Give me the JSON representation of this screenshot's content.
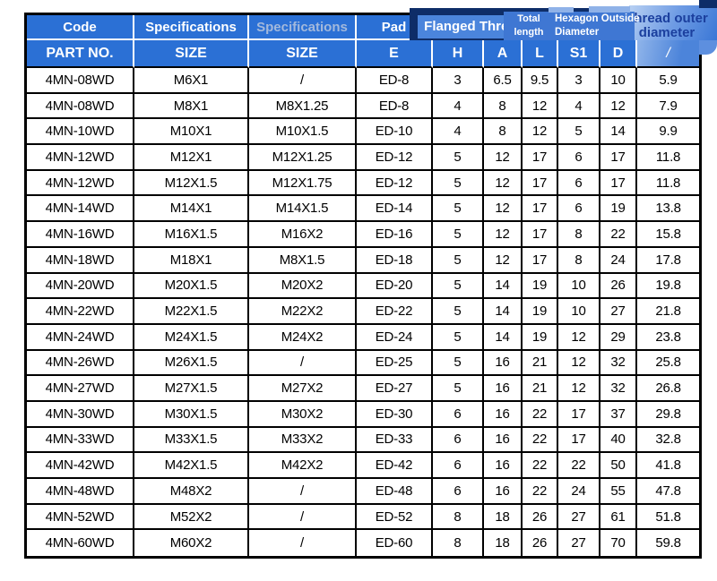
{
  "colors": {
    "header_blue": "#2b70d5",
    "navy": "#0e2d68",
    "box_blue": "#4b85dc",
    "med_blue": "#3f77d3",
    "light_blue": "#8fb2e8",
    "muted_text": "#a3b9dc",
    "thread_text": "#1b3f9e",
    "border_black": "#000000"
  },
  "header": {
    "row1": {
      "code": "Code",
      "spec1": "Specifications",
      "spec2": "Specifications",
      "pad": "Pad",
      "flanged_thread": "Flanged Thread",
      "total_length_lines": [
        "Total",
        "length"
      ],
      "hexagon_lines": [
        "Hexagon Outside",
        "Diameter"
      ],
      "thread_outer_lines": [
        "Thread outer",
        "diameter"
      ]
    },
    "row2": [
      "PART NO.",
      "SIZE",
      "SIZE",
      "E",
      "H",
      "A",
      "L",
      "S1",
      "D",
      "/"
    ]
  },
  "table": {
    "rows": [
      [
        "4MN-08WD",
        "M6X1",
        "/",
        "ED-8",
        "3",
        "6.5",
        "9.5",
        "3",
        "10",
        "5.9"
      ],
      [
        "4MN-08WD",
        "M8X1",
        "M8X1.25",
        "ED-8",
        "4",
        "8",
        "12",
        "4",
        "12",
        "7.9"
      ],
      [
        "4MN-10WD",
        "M10X1",
        "M10X1.5",
        "ED-10",
        "4",
        "8",
        "12",
        "5",
        "14",
        "9.9"
      ],
      [
        "4MN-12WD",
        "M12X1",
        "M12X1.25",
        "ED-12",
        "5",
        "12",
        "17",
        "6",
        "17",
        "11.8"
      ],
      [
        "4MN-12WD",
        "M12X1.5",
        "M12X1.75",
        "ED-12",
        "5",
        "12",
        "17",
        "6",
        "17",
        "11.8"
      ],
      [
        "4MN-14WD",
        "M14X1",
        "M14X1.5",
        "ED-14",
        "5",
        "12",
        "17",
        "6",
        "19",
        "13.8"
      ],
      [
        "4MN-16WD",
        "M16X1.5",
        "M16X2",
        "ED-16",
        "5",
        "12",
        "17",
        "8",
        "22",
        "15.8"
      ],
      [
        "4MN-18WD",
        "M18X1",
        "M8X1.5",
        "ED-18",
        "5",
        "12",
        "17",
        "8",
        "24",
        "17.8"
      ],
      [
        "4MN-20WD",
        "M20X1.5",
        "M20X2",
        "ED-20",
        "5",
        "14",
        "19",
        "10",
        "26",
        "19.8"
      ],
      [
        "4MN-22WD",
        "M22X1.5",
        "M22X2",
        "ED-22",
        "5",
        "14",
        "19",
        "10",
        "27",
        "21.8"
      ],
      [
        "4MN-24WD",
        "M24X1.5",
        "M24X2",
        "ED-24",
        "5",
        "14",
        "19",
        "12",
        "29",
        "23.8"
      ],
      [
        "4MN-26WD",
        "M26X1.5",
        "/",
        "ED-25",
        "5",
        "16",
        "21",
        "12",
        "32",
        "25.8"
      ],
      [
        "4MN-27WD",
        "M27X1.5",
        "M27X2",
        "ED-27",
        "5",
        "16",
        "21",
        "12",
        "32",
        "26.8"
      ],
      [
        "4MN-30WD",
        "M30X1.5",
        "M30X2",
        "ED-30",
        "6",
        "16",
        "22",
        "17",
        "37",
        "29.8"
      ],
      [
        "4MN-33WD",
        "M33X1.5",
        "M33X2",
        "ED-33",
        "6",
        "16",
        "22",
        "17",
        "40",
        "32.8"
      ],
      [
        "4MN-42WD",
        "M42X1.5",
        "M42X2",
        "ED-42",
        "6",
        "16",
        "22",
        "22",
        "50",
        "41.8"
      ],
      [
        "4MN-48WD",
        "M48X2",
        "/",
        "ED-48",
        "6",
        "16",
        "22",
        "24",
        "55",
        "47.8"
      ],
      [
        "4MN-52WD",
        "M52X2",
        "/",
        "ED-52",
        "8",
        "18",
        "26",
        "27",
        "61",
        "51.8"
      ],
      [
        "4MN-60WD",
        "M60X2",
        "/",
        "ED-60",
        "8",
        "18",
        "26",
        "27",
        "70",
        "59.8"
      ]
    ]
  }
}
